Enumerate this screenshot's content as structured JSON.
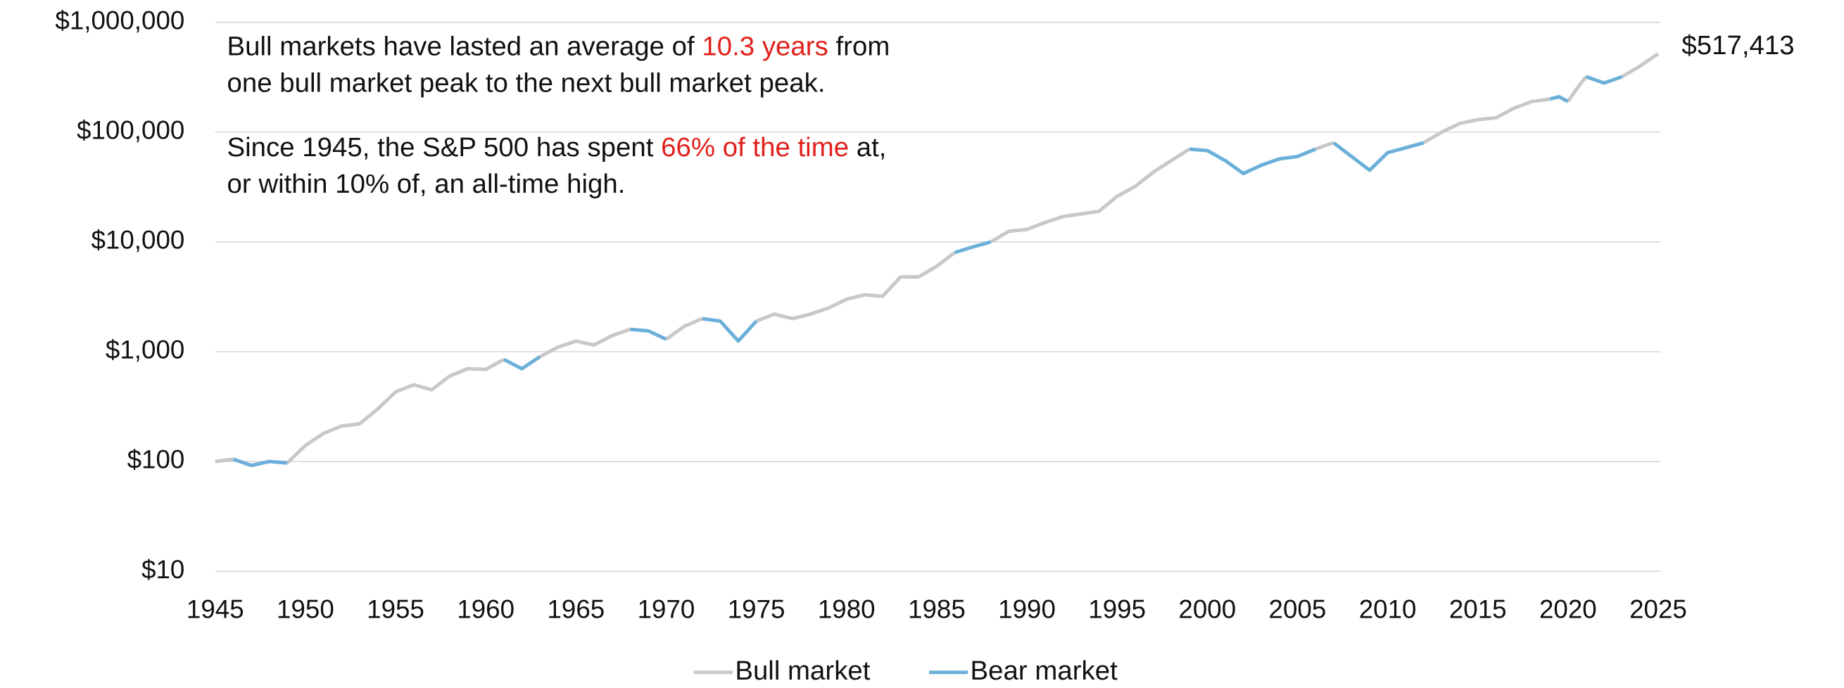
{
  "chart_data": {
    "type": "line",
    "log_y": true,
    "grid": true,
    "legend": "bottom",
    "x": [
      1945,
      1946,
      1947,
      1948,
      1949,
      1950,
      1951,
      1952,
      1953,
      1954,
      1955,
      1956,
      1957,
      1958,
      1959,
      1960,
      1961,
      1962,
      1963,
      1964,
      1965,
      1966,
      1967,
      1968,
      1969,
      1970,
      1971,
      1972,
      1973,
      1974,
      1975,
      1976,
      1977,
      1978,
      1979,
      1980,
      1981,
      1982,
      1983,
      1984,
      1985,
      1986,
      1987,
      1988,
      1989,
      1990,
      1991,
      1992,
      1993,
      1994,
      1995,
      1996,
      1997,
      1998,
      1999,
      2000,
      2001,
      2002,
      2003,
      2004,
      2005,
      2006,
      2006.5,
      2007,
      2008,
      2009,
      2010,
      2011,
      2012,
      2013,
      2014,
      2015,
      2016,
      2017,
      2018,
      2019,
      2019.5,
      2020,
      2020.5,
      2021,
      2022,
      2023,
      2024,
      2025
    ],
    "series": [
      {
        "name": "Bull market",
        "color": "#c8c8c8",
        "values": [
          100,
          105,
          null,
          null,
          97,
          140,
          180,
          210,
          220,
          300,
          430,
          500,
          450,
          600,
          700,
          690,
          850,
          null,
          900,
          1100,
          1250,
          1150,
          1400,
          1600,
          null,
          1300,
          1700,
          2000,
          null,
          null,
          1900,
          2200,
          2000,
          2200,
          2500,
          3000,
          3300,
          3200,
          4800,
          4800,
          6000,
          8000,
          null,
          10000,
          12500,
          13000,
          15000,
          17000,
          18000,
          19000,
          26000,
          32000,
          43000,
          55000,
          70000,
          null,
          null,
          null,
          null,
          null,
          null,
          70000,
          75000,
          80000,
          null,
          null,
          null,
          null,
          80000,
          100000,
          120000,
          130000,
          135000,
          165000,
          190000,
          200000,
          null,
          190000,
          250000,
          320000,
          null,
          320000,
          400000,
          517413
        ]
      },
      {
        "name": "Bear market",
        "color": "#6cb0da",
        "values": [
          null,
          105,
          92,
          100,
          97,
          null,
          null,
          null,
          null,
          null,
          null,
          null,
          null,
          null,
          null,
          null,
          850,
          700,
          900,
          null,
          null,
          null,
          null,
          1600,
          1550,
          1300,
          null,
          2000,
          1900,
          1250,
          1900,
          null,
          null,
          null,
          null,
          null,
          null,
          null,
          null,
          null,
          null,
          8000,
          9000,
          10000,
          null,
          null,
          null,
          null,
          null,
          null,
          null,
          null,
          null,
          null,
          70000,
          68000,
          55000,
          42000,
          50000,
          57000,
          60000,
          70000,
          null,
          80000,
          60000,
          45000,
          65000,
          72000,
          80000,
          null,
          null,
          null,
          null,
          null,
          null,
          200000,
          210000,
          190000,
          null,
          320000,
          280000,
          320000,
          null,
          null
        ]
      }
    ],
    "end_label": "$517,413",
    "xlim": [
      1945,
      2025
    ],
    "xticks": [
      1945,
      1950,
      1955,
      1960,
      1965,
      1970,
      1975,
      1980,
      1985,
      1990,
      1995,
      2000,
      2005,
      2010,
      2015,
      2020,
      2025
    ],
    "ylim": [
      10,
      1000000
    ],
    "yticks": [
      {
        "value": 10,
        "label": "$10"
      },
      {
        "value": 100,
        "label": "$100"
      },
      {
        "value": 1000,
        "label": "$1,000"
      },
      {
        "value": 10000,
        "label": "$10,000"
      },
      {
        "value": 100000,
        "label": "$100,000"
      },
      {
        "value": 1000000,
        "label": "$1,000,000"
      }
    ],
    "annotations": [
      {
        "lines": [
          [
            {
              "text": "Bull markets have lasted an average of "
            },
            {
              "text": "10.3 years",
              "color": "#e0201b"
            },
            {
              "text": " from"
            }
          ],
          [
            {
              "text": "one bull market peak to the next bull market peak."
            }
          ]
        ]
      },
      {
        "lines": [
          [
            {
              "text": "Since 1945, the S&P 500 has spent "
            },
            {
              "text": "66% of the time",
              "color": "#e0201b"
            },
            {
              "text": " at,"
            }
          ],
          [
            {
              "text": "or within 10% of, an all-time high."
            }
          ]
        ]
      }
    ]
  }
}
